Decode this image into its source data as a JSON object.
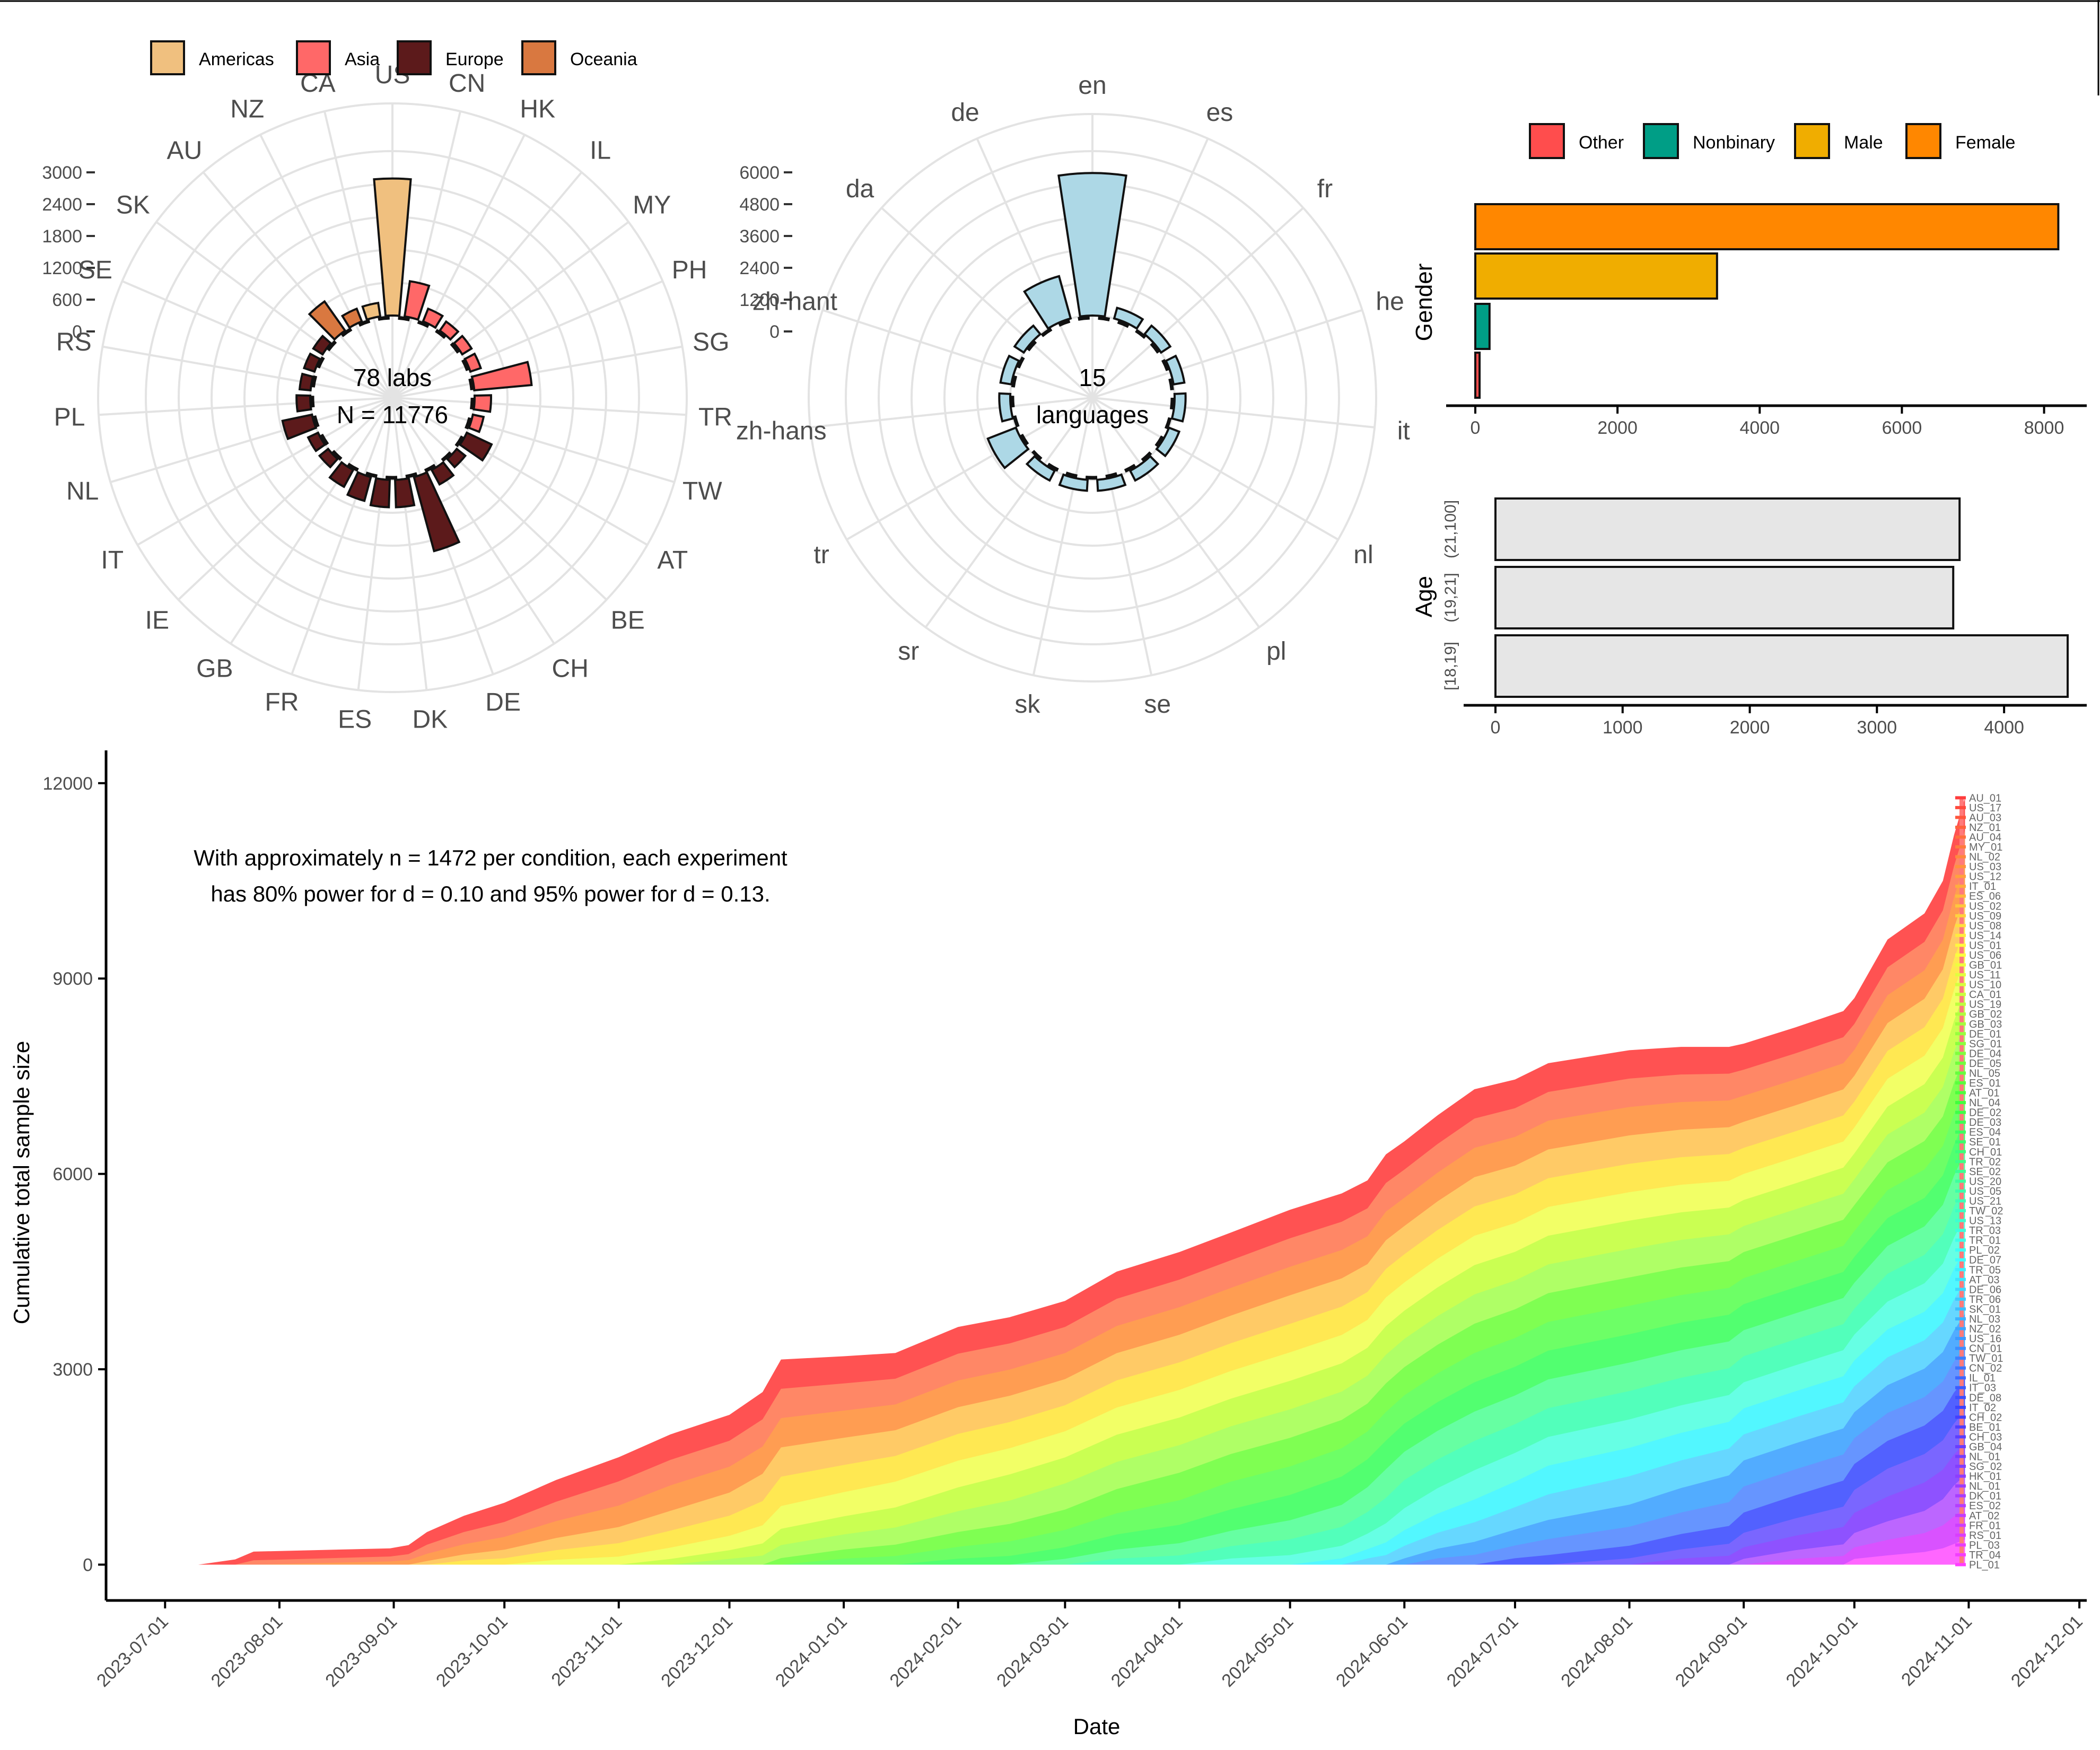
{
  "chart_data": [
    {
      "type": "polar-bar",
      "panel": "labs-by-country",
      "center_text": [
        "78 labs",
        "N = 11776"
      ],
      "legend": [
        {
          "name": "Americas",
          "color": "#F0C07F"
        },
        {
          "name": "Asia",
          "color": "#FF6868"
        },
        {
          "name": "Europe",
          "color": "#5C1A1B"
        },
        {
          "name": "Oceania",
          "color": "#D97840"
        }
      ],
      "radial_ticks": [
        "0",
        "600",
        "1200",
        "1800",
        "2400",
        "3000"
      ],
      "rlim": [
        0,
        3000
      ],
      "grid": true,
      "categories": [
        "US",
        "CN",
        "HK",
        "IL",
        "MY",
        "PH",
        "SG",
        "TR",
        "TW",
        "AT",
        "BE",
        "CH",
        "DE",
        "DK",
        "ES",
        "FR",
        "GB",
        "IE",
        "IT",
        "NL",
        "PL",
        "RS",
        "SE",
        "SK",
        "AU",
        "NZ",
        "CA"
      ],
      "region": [
        "Americas",
        "Asia",
        "Asia",
        "Asia",
        "Asia",
        "Asia",
        "Asia",
        "Asia",
        "Asia",
        "Europe",
        "Europe",
        "Europe",
        "Europe",
        "Europe",
        "Europe",
        "Europe",
        "Europe",
        "Europe",
        "Europe",
        "Europe",
        "Europe",
        "Europe",
        "Europe",
        "Europe",
        "Oceania",
        "Oceania",
        "Americas"
      ],
      "values": [
        2500,
        650,
        250,
        200,
        200,
        200,
        1050,
        300,
        200,
        500,
        200,
        300,
        1400,
        500,
        500,
        450,
        350,
        200,
        200,
        550,
        250,
        200,
        200,
        200,
        650,
        250,
        250
      ]
    },
    {
      "type": "polar-bar",
      "panel": "languages",
      "center_text": [
        "15",
        "languages"
      ],
      "color": "#ADD8E6",
      "radial_ticks": [
        "0",
        "1200",
        "2400",
        "3600",
        "4800",
        "6000"
      ],
      "rlim": [
        0,
        6000
      ],
      "grid": true,
      "categories": [
        "en",
        "es",
        "fr",
        "he",
        "it",
        "nl",
        "pl",
        "se",
        "sk",
        "sr",
        "tr",
        "zh-hans",
        "zh-hant",
        "da",
        "de"
      ],
      "values": [
        5200,
        400,
        400,
        400,
        400,
        400,
        400,
        400,
        400,
        400,
        1100,
        400,
        400,
        400,
        1600
      ]
    },
    {
      "type": "bar",
      "orientation": "horizontal",
      "panel": "gender",
      "ylabel": "Gender",
      "legend": [
        {
          "name": "Other",
          "color": "#FF4D4D"
        },
        {
          "name": "Nonbinary",
          "color": "#009E86"
        },
        {
          "name": "Male",
          "color": "#F0AD00"
        },
        {
          "name": "Female",
          "color": "#FF8700"
        }
      ],
      "categories": [
        "Other",
        "Nonbinary",
        "Male",
        "Female"
      ],
      "values": [
        60,
        200,
        3400,
        8200
      ],
      "x_ticks": [
        0,
        2000,
        4000,
        6000,
        8000
      ],
      "xlim": [
        0,
        8600
      ]
    },
    {
      "type": "bar",
      "orientation": "horizontal",
      "panel": "age",
      "ylabel": "Age",
      "categories": [
        "[18,19]",
        "(19,21]",
        "(21,100]"
      ],
      "values": [
        4500,
        3600,
        3650
      ],
      "color": "#E6E6E6",
      "x_ticks": [
        0,
        1000,
        2000,
        3000,
        4000
      ],
      "xlim": [
        0,
        4650
      ]
    },
    {
      "type": "area",
      "panel": "cumulative-sample",
      "stacked": true,
      "xlabel": "Date",
      "ylabel": "Cumulative total sample size",
      "annotation": [
        "With approximately n = 1472 per condition, each experiment",
        "has 80% power for d = 0.10 and 95% power for d = 0.13."
      ],
      "x_ticks": [
        "2023-07-01",
        "2023-08-01",
        "2023-09-01",
        "2023-10-01",
        "2023-11-01",
        "2023-12-01",
        "2024-01-01",
        "2024-02-01",
        "2024-03-01",
        "2024-04-01",
        "2024-05-01",
        "2024-06-01",
        "2024-07-01",
        "2024-08-01",
        "2024-09-01",
        "2024-10-01",
        "2024-11-01",
        "2024-12-01"
      ],
      "xlim": [
        "2023-06-15",
        "2024-12-03"
      ],
      "y_ticks": [
        0,
        3000,
        6000,
        9000,
        12000
      ],
      "ylim": [
        -550,
        12300
      ],
      "x": [
        "2023-07-10",
        "2023-07-20",
        "2023-07-25",
        "2023-08-31",
        "2023-09-05",
        "2023-09-10",
        "2023-09-20",
        "2023-10-01",
        "2023-10-15",
        "2023-11-01",
        "2023-11-15",
        "2023-12-01",
        "2023-12-10",
        "2023-12-15",
        "2024-01-01",
        "2024-01-15",
        "2024-02-01",
        "2024-02-15",
        "2024-03-01",
        "2024-03-15",
        "2024-04-01",
        "2024-04-15",
        "2024-05-01",
        "2024-05-15",
        "2024-05-22",
        "2024-05-27",
        "2024-06-01",
        "2024-06-10",
        "2024-06-20",
        "2024-07-01",
        "2024-07-10",
        "2024-08-01",
        "2024-08-15",
        "2024-08-28",
        "2024-09-01",
        "2024-09-15",
        "2024-09-28",
        "2024-10-01",
        "2024-10-10",
        "2024-10-20",
        "2024-10-25",
        "2024-10-28",
        "2024-10-31"
      ],
      "total": [
        0,
        80,
        200,
        250,
        300,
        500,
        750,
        950,
        1300,
        1650,
        2000,
        2300,
        2650,
        3150,
        3200,
        3250,
        3650,
        3800,
        4050,
        4500,
        4800,
        5100,
        5450,
        5700,
        5900,
        6300,
        6500,
        6900,
        7300,
        7450,
        7700,
        7900,
        7950,
        7950,
        8000,
        8250,
        8500,
        8700,
        9600,
        10000,
        10500,
        11200,
        11776
      ],
      "series_labels": [
        "AU_01",
        "US_17",
        "AU_03",
        "NZ_01",
        "AU_04",
        "MY_01",
        "NL_02",
        "US_03",
        "US_12",
        "IT_01",
        "ES_06",
        "US_02",
        "US_09",
        "US_08",
        "US_14",
        "US_01",
        "US_06",
        "GB_01",
        "US_11",
        "US_10",
        "CA_01",
        "US_19",
        "GB_02",
        "GB_03",
        "DE_01",
        "SG_01",
        "DE_04",
        "DE_05",
        "NL_05",
        "ES_01",
        "AT_01",
        "NL_04",
        "DE_02",
        "DE_03",
        "ES_04",
        "SE_01",
        "CH_01",
        "TR_02",
        "SE_02",
        "US_20",
        "US_05",
        "US_21",
        "TW_02",
        "US_13",
        "TR_03",
        "TR_01",
        "PL_02",
        "DE_07",
        "TR_05",
        "AT_03",
        "DE_06",
        "TR_06",
        "SK_01",
        "NL_03",
        "NZ_02",
        "US_16",
        "CN_01",
        "TW_01",
        "CN_02",
        "IL_01",
        "IT_03",
        "DE_08",
        "IT_02",
        "CH_02",
        "BE_01",
        "CH_03",
        "GB_04",
        "NL_01",
        "SG_02",
        "HK_01",
        "NL_01",
        "DK_01",
        "ES_02",
        "AT_02",
        "FR_01",
        "RS_01",
        "PL_03",
        "TR_04",
        "PL_01"
      ],
      "series_colors": "rainbow"
    }
  ]
}
